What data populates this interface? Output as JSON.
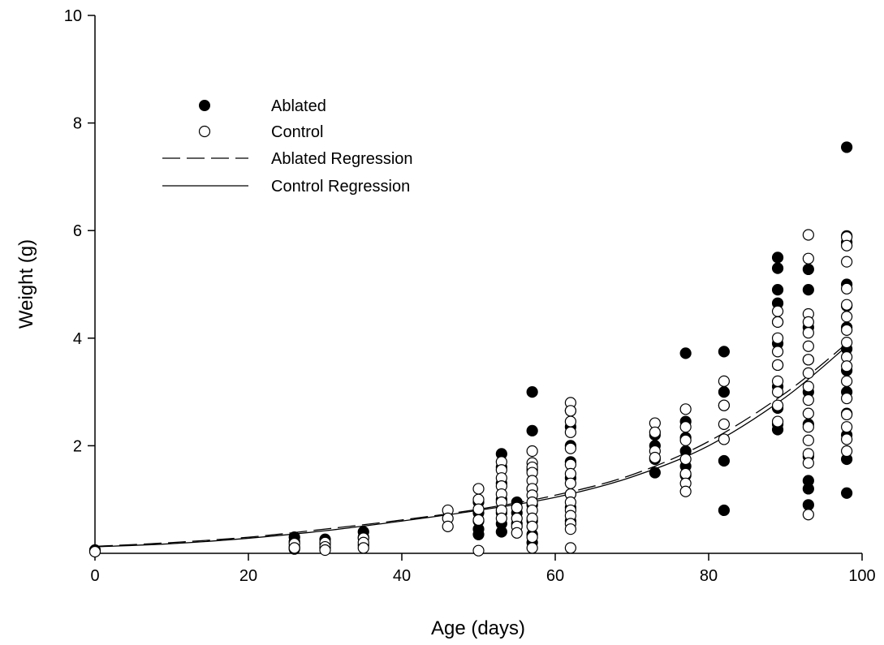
{
  "chart_data": {
    "type": "scatter",
    "title": "",
    "xlabel": "Age (days)",
    "ylabel": "Weight (g)",
    "xlim": [
      0,
      100
    ],
    "ylim": [
      0,
      10
    ],
    "x_ticks": [
      "0",
      "20",
      "40",
      "60",
      "80",
      "100"
    ],
    "y_ticks": [
      "2",
      "4",
      "6",
      "8",
      "10"
    ],
    "grid": false,
    "legend_position": "upper-left",
    "legend": [
      {
        "label": "Ablated",
        "marker": "filled-circle"
      },
      {
        "label": "Control",
        "marker": "open-circle"
      },
      {
        "label": "Ablated Regression",
        "style": "dashed-line"
      },
      {
        "label": "Control Regression",
        "style": "solid-line"
      }
    ],
    "series": [
      {
        "name": "Ablated",
        "marker": "filled-circle",
        "color": "#000000",
        "points": [
          [
            0,
            0.06
          ],
          [
            0,
            0.05
          ],
          [
            26,
            0.3
          ],
          [
            26,
            0.22
          ],
          [
            26,
            0.12
          ],
          [
            26,
            0.08
          ],
          [
            30,
            0.26
          ],
          [
            30,
            0.18
          ],
          [
            30,
            0.1
          ],
          [
            35,
            0.4
          ],
          [
            35,
            0.3
          ],
          [
            35,
            0.15
          ],
          [
            50,
            0.95
          ],
          [
            50,
            0.75
          ],
          [
            50,
            0.6
          ],
          [
            50,
            0.45
          ],
          [
            50,
            0.35
          ],
          [
            53,
            1.85
          ],
          [
            53,
            1.6
          ],
          [
            53,
            1.3
          ],
          [
            53,
            1.0
          ],
          [
            53,
            0.75
          ],
          [
            53,
            0.55
          ],
          [
            53,
            0.4
          ],
          [
            55,
            0.95
          ],
          [
            55,
            0.75
          ],
          [
            55,
            0.55
          ],
          [
            57,
            3.0
          ],
          [
            57,
            2.28
          ],
          [
            57,
            1.55
          ],
          [
            57,
            1.2
          ],
          [
            57,
            0.9
          ],
          [
            57,
            0.6
          ],
          [
            57,
            0.35
          ],
          [
            57,
            0.2
          ],
          [
            62,
            2.65
          ],
          [
            62,
            2.35
          ],
          [
            62,
            2.0
          ],
          [
            62,
            1.7
          ],
          [
            62,
            1.4
          ],
          [
            62,
            1.1
          ],
          [
            62,
            0.85
          ],
          [
            62,
            0.6
          ],
          [
            73,
            2.2
          ],
          [
            73,
            2.0
          ],
          [
            73,
            1.75
          ],
          [
            73,
            1.5
          ],
          [
            77,
            3.72
          ],
          [
            77,
            2.45
          ],
          [
            77,
            2.15
          ],
          [
            77,
            1.9
          ],
          [
            77,
            1.62
          ],
          [
            77,
            1.45
          ],
          [
            82,
            3.75
          ],
          [
            82,
            3.0
          ],
          [
            82,
            2.75
          ],
          [
            82,
            1.72
          ],
          [
            82,
            0.8
          ],
          [
            89,
            5.5
          ],
          [
            89,
            5.3
          ],
          [
            89,
            4.9
          ],
          [
            89,
            4.65
          ],
          [
            89,
            4.3
          ],
          [
            89,
            3.9
          ],
          [
            89,
            3.5
          ],
          [
            89,
            3.1
          ],
          [
            89,
            2.7
          ],
          [
            89,
            2.4
          ],
          [
            89,
            2.3
          ],
          [
            93,
            5.28
          ],
          [
            93,
            4.9
          ],
          [
            93,
            4.2
          ],
          [
            93,
            3.6
          ],
          [
            93,
            3.0
          ],
          [
            93,
            2.4
          ],
          [
            93,
            1.8
          ],
          [
            93,
            1.35
          ],
          [
            93,
            1.2
          ],
          [
            93,
            0.9
          ],
          [
            98,
            7.55
          ],
          [
            98,
            5.9
          ],
          [
            98,
            5.78
          ],
          [
            98,
            5.0
          ],
          [
            98,
            4.6
          ],
          [
            98,
            4.2
          ],
          [
            98,
            3.8
          ],
          [
            98,
            3.4
          ],
          [
            98,
            3.0
          ],
          [
            98,
            2.6
          ],
          [
            98,
            2.2
          ],
          [
            98,
            1.75
          ],
          [
            98,
            1.12
          ]
        ]
      },
      {
        "name": "Control",
        "marker": "open-circle",
        "color": "#000000",
        "points": [
          [
            0,
            0.04
          ],
          [
            0,
            0.03
          ],
          [
            26,
            0.18
          ],
          [
            26,
            0.1
          ],
          [
            30,
            0.2
          ],
          [
            30,
            0.12
          ],
          [
            30,
            0.06
          ],
          [
            35,
            0.28
          ],
          [
            35,
            0.2
          ],
          [
            35,
            0.1
          ],
          [
            46,
            0.8
          ],
          [
            46,
            0.65
          ],
          [
            46,
            0.5
          ],
          [
            50,
            1.2
          ],
          [
            50,
            1.0
          ],
          [
            50,
            0.82
          ],
          [
            50,
            0.62
          ],
          [
            50,
            0.05
          ],
          [
            53,
            1.7
          ],
          [
            53,
            1.55
          ],
          [
            53,
            1.4
          ],
          [
            53,
            1.25
          ],
          [
            53,
            1.1
          ],
          [
            53,
            0.95
          ],
          [
            53,
            0.8
          ],
          [
            53,
            0.65
          ],
          [
            55,
            0.85
          ],
          [
            55,
            0.65
          ],
          [
            55,
            0.5
          ],
          [
            55,
            0.38
          ],
          [
            57,
            1.9
          ],
          [
            57,
            1.68
          ],
          [
            57,
            1.6
          ],
          [
            57,
            1.5
          ],
          [
            57,
            1.35
          ],
          [
            57,
            1.2
          ],
          [
            57,
            1.08
          ],
          [
            57,
            0.95
          ],
          [
            57,
            0.8
          ],
          [
            57,
            0.65
          ],
          [
            57,
            0.5
          ],
          [
            57,
            0.3
          ],
          [
            57,
            0.1
          ],
          [
            62,
            2.8
          ],
          [
            62,
            2.65
          ],
          [
            62,
            2.45
          ],
          [
            62,
            2.25
          ],
          [
            62,
            1.95
          ],
          [
            62,
            1.65
          ],
          [
            62,
            1.48
          ],
          [
            62,
            1.3
          ],
          [
            62,
            1.1
          ],
          [
            62,
            0.95
          ],
          [
            62,
            0.8
          ],
          [
            62,
            0.7
          ],
          [
            62,
            0.55
          ],
          [
            62,
            0.45
          ],
          [
            62,
            0.1
          ],
          [
            73,
            2.42
          ],
          [
            73,
            2.25
          ],
          [
            73,
            1.9
          ],
          [
            73,
            1.78
          ],
          [
            77,
            2.68
          ],
          [
            77,
            2.35
          ],
          [
            77,
            2.1
          ],
          [
            77,
            1.75
          ],
          [
            77,
            1.48
          ],
          [
            77,
            1.3
          ],
          [
            77,
            1.15
          ],
          [
            82,
            3.2
          ],
          [
            82,
            2.75
          ],
          [
            82,
            2.4
          ],
          [
            82,
            2.12
          ],
          [
            89,
            4.5
          ],
          [
            89,
            4.3
          ],
          [
            89,
            4.0
          ],
          [
            89,
            3.75
          ],
          [
            89,
            3.5
          ],
          [
            89,
            3.2
          ],
          [
            89,
            3.0
          ],
          [
            89,
            2.75
          ],
          [
            89,
            2.45
          ],
          [
            93,
            5.92
          ],
          [
            93,
            5.48
          ],
          [
            93,
            4.45
          ],
          [
            93,
            4.3
          ],
          [
            93,
            4.1
          ],
          [
            93,
            3.85
          ],
          [
            93,
            3.6
          ],
          [
            93,
            3.35
          ],
          [
            93,
            3.1
          ],
          [
            93,
            2.85
          ],
          [
            93,
            2.6
          ],
          [
            93,
            2.35
          ],
          [
            93,
            2.1
          ],
          [
            93,
            1.85
          ],
          [
            93,
            1.68
          ],
          [
            93,
            0.72
          ],
          [
            98,
            5.88
          ],
          [
            98,
            5.72
          ],
          [
            98,
            5.42
          ],
          [
            98,
            4.92
          ],
          [
            98,
            4.62
          ],
          [
            98,
            4.4
          ],
          [
            98,
            4.15
          ],
          [
            98,
            3.92
          ],
          [
            98,
            3.65
          ],
          [
            98,
            3.48
          ],
          [
            98,
            3.2
          ],
          [
            98,
            2.88
          ],
          [
            98,
            2.58
          ],
          [
            98,
            2.35
          ],
          [
            98,
            2.12
          ],
          [
            98,
            1.9
          ]
        ]
      },
      {
        "name": "Ablated Regression",
        "style": "dashed",
        "color": "#000000",
        "x": [
          0,
          10,
          20,
          30,
          40,
          50,
          60,
          70,
          80,
          90,
          98
        ],
        "y": [
          0.13,
          0.2,
          0.3,
          0.45,
          0.62,
          0.82,
          1.08,
          1.46,
          2.08,
          2.98,
          3.9
        ]
      },
      {
        "name": "Control Regression",
        "style": "solid",
        "color": "#000000",
        "x": [
          0,
          10,
          20,
          30,
          40,
          50,
          60,
          70,
          80,
          90,
          98
        ],
        "y": [
          0.12,
          0.18,
          0.28,
          0.42,
          0.6,
          0.8,
          1.04,
          1.42,
          2.0,
          2.9,
          3.85
        ]
      }
    ]
  }
}
